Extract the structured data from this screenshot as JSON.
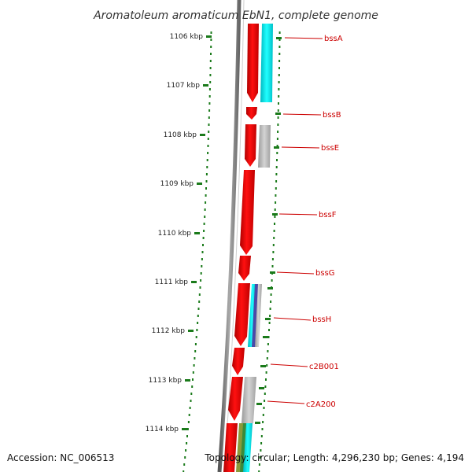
{
  "title": "Aromatoleum aromaticum EbN1, complete genome",
  "footer": {
    "accession": "Accession: NC_006513",
    "topology": "Topology: circular; Length: 4,296,230 bp; Genes: 4,194"
  },
  "colors": {
    "backbone": "#777777",
    "gene_forward": "#ff0000",
    "cds_cyan": "#00e5e5",
    "cds_gray": "#b0b0b0",
    "cds_blue": "#4a4aa8",
    "cds_olive": "#8a9a3a",
    "cds_green": "#3a8a3a",
    "gene_label": "#cc0000",
    "gc_track": "#1a7a1a"
  },
  "axis": {
    "unit": "kbp",
    "ticks": [
      "1106 kbp",
      "1107 kbp",
      "1108 kbp",
      "1109 kbp",
      "1110 kbp",
      "1111 kbp",
      "1112 kbp",
      "1113 kbp",
      "1114 kbp"
    ]
  },
  "genes": [
    {
      "label": "bssA"
    },
    {
      "label": "bssB"
    },
    {
      "label": "bssE"
    },
    {
      "label": "bssF"
    },
    {
      "label": "bssG"
    },
    {
      "label": "bssH"
    },
    {
      "label": "c2B001"
    },
    {
      "label": "c2A200"
    }
  ]
}
